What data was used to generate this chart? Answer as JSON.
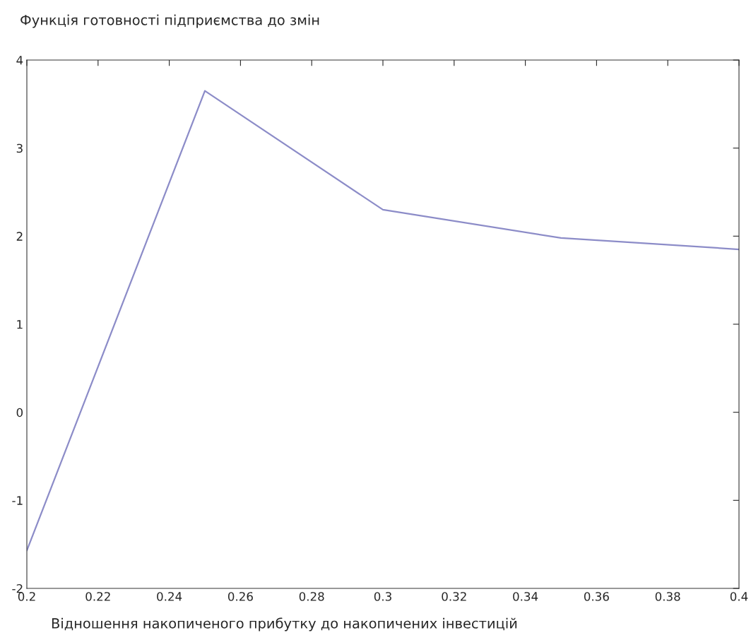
{
  "chart_data": {
    "type": "line",
    "title": "Функція готовності підприємства до змін",
    "xlabel": "Відношення накопиченого прибутку до накопичених інвестицій",
    "x": [
      0.2,
      0.25,
      0.3,
      0.35,
      0.4
    ],
    "series": [
      {
        "color": "#8c8cc8",
        "values": [
          -1.57,
          3.65,
          2.3,
          1.98,
          1.85
        ]
      }
    ],
    "xlim": [
      0.2,
      0.4
    ],
    "xticks": [
      0.2,
      0.22,
      0.24,
      0.26,
      0.28,
      0.3,
      0.32,
      0.34,
      0.36,
      0.38,
      0.4
    ],
    "ylim": [
      -2,
      4
    ],
    "yticks": [
      -2,
      -1,
      0,
      1,
      2,
      3,
      4
    ],
    "grid": false
  }
}
